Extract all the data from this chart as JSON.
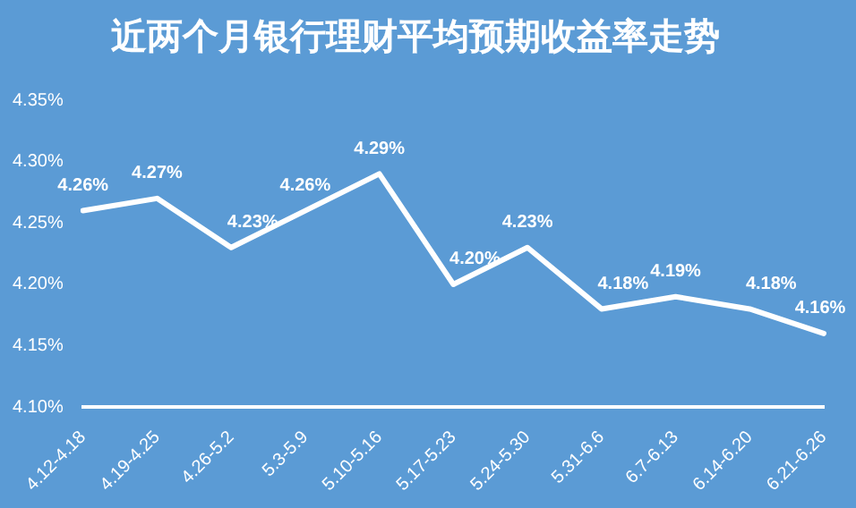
{
  "chart_data": {
    "type": "line",
    "title": "近两个月银行理财平均预期收益率走势",
    "categories": [
      "4.12-4.18",
      "4.19-4.25",
      "4.26-5.2",
      "5.3-5.9",
      "5.10-5.16",
      "5.17-5.23",
      "5.24-5.30",
      "5.31-6.6",
      "6.7-6.13",
      "6.14-6.20",
      "6.21-6.26"
    ],
    "series": [
      {
        "color": "#ffffff",
        "values": [
          4.26,
          4.27,
          4.23,
          4.26,
          4.29,
          4.2,
          4.23,
          4.18,
          4.19,
          4.18,
          4.16
        ],
        "value_labels": [
          "4.26%",
          "4.27%",
          "4.23%",
          "4.26%",
          "4.29%",
          "4.20%",
          "4.23%",
          "4.18%",
          "4.19%",
          "4.18%",
          "4.16%"
        ]
      }
    ],
    "ylim": [
      4.1,
      4.35
    ],
    "yticks": [
      {
        "value": 4.1,
        "label": "4.10%"
      },
      {
        "value": 4.15,
        "label": "4.15%"
      },
      {
        "value": 4.2,
        "label": "4.20%"
      },
      {
        "value": 4.25,
        "label": "4.25%"
      },
      {
        "value": 4.3,
        "label": "4.30%"
      },
      {
        "value": 4.35,
        "label": "4.35%"
      }
    ],
    "grid": false,
    "legend": false,
    "marker": "none",
    "line_style": "solid"
  }
}
